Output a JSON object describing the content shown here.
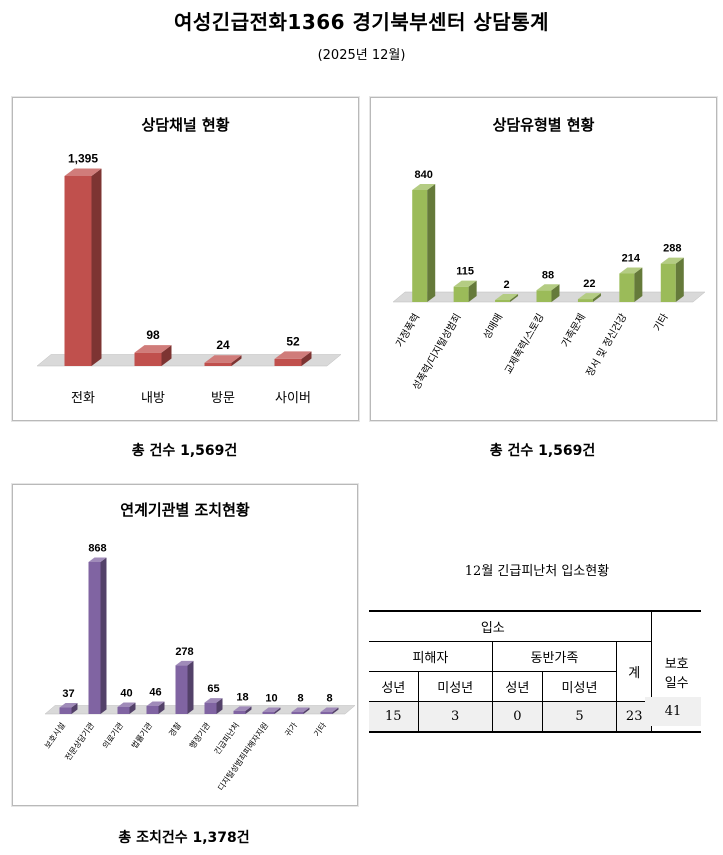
{
  "title": "여성긴급전화1366 경기북부센터 상담통계",
  "period": "(2025년  12월)",
  "colors": {
    "channel": "#c0504d",
    "type": "#9bbb59",
    "agency": "#8064a2",
    "floor": "#d9d9d9"
  },
  "chart_data": [
    {
      "type": "bar",
      "title": "상담채널 현황",
      "categories": [
        "전화",
        "내방",
        "방문",
        "사이버"
      ],
      "values": [
        1395,
        98,
        24,
        52
      ],
      "value_labels": [
        "1,395",
        "98",
        "24",
        "52"
      ],
      "footer": "총  건수  1,569건"
    },
    {
      "type": "bar",
      "title": "상담유형별 현황",
      "categories": [
        "가정폭력",
        "성폭력/디지털성범죄",
        "성매매",
        "교제폭력/스토킹",
        "가족문제",
        "정서 및 정신건강",
        "기타"
      ],
      "values": [
        840,
        115,
        2,
        88,
        22,
        214,
        288
      ],
      "value_labels": [
        "840",
        "115",
        "2",
        "88",
        "22",
        "214",
        "288"
      ],
      "footer": "총  건수  1,569건"
    },
    {
      "type": "bar",
      "title": "연계기관별 조치현황",
      "categories": [
        "보호시설",
        "전문상담기관",
        "의료기관",
        "법률기관",
        "경찰",
        "행정기관",
        "긴급피난처",
        "디지털성범죄피해자지원",
        "귀가",
        "기타"
      ],
      "values": [
        37,
        868,
        40,
        46,
        278,
        65,
        18,
        10,
        8,
        8
      ],
      "value_labels": [
        "37",
        "868",
        "40",
        "46",
        "278",
        "65",
        "18",
        "10",
        "8",
        "8"
      ],
      "footer": "총  조치건수  1,378건"
    }
  ],
  "shelter_table": {
    "title": "12월  긴급피난처  입소현황",
    "header_admission": "입소",
    "header_victim": "피해자",
    "header_family": "동반가족",
    "header_total": "계",
    "header_protect_1": "보호",
    "header_protect_2": "일수",
    "sub_adult_1": "성년",
    "sub_minor_1": "미성년",
    "sub_adult_2": "성년",
    "sub_minor_2": "미성년",
    "values": [
      "15",
      "3",
      "0",
      "5",
      "23",
      "41"
    ]
  }
}
